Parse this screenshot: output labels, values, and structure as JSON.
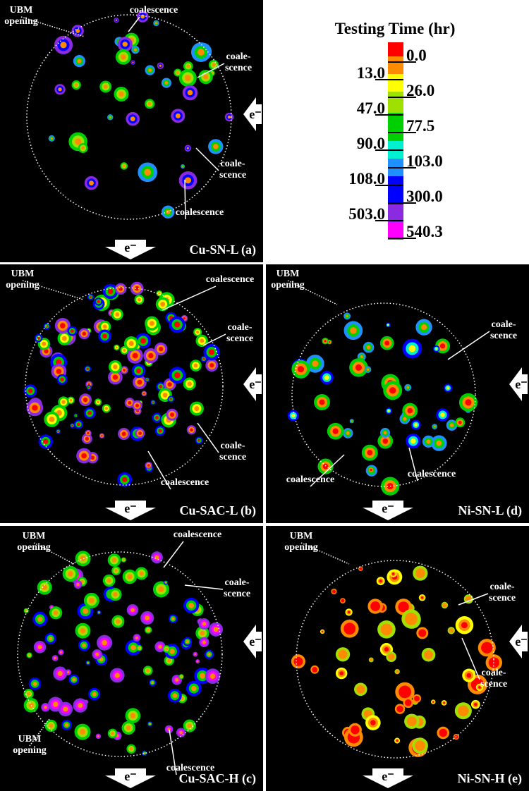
{
  "legend": {
    "title": "Testing Time (hr)",
    "labels": [
      "0.0",
      "13.0",
      "26.0",
      "47.0",
      "77.5",
      "90.0",
      "103.0",
      "108.0",
      "300.0",
      "503.0",
      "540.3"
    ]
  },
  "panels": [
    {
      "label": "Cu-SN-L (a)",
      "electron_labels": [
        "e⁻",
        "e⁻"
      ],
      "annotations": [
        [
          "UBM",
          "opening"
        ],
        [
          "coalescence"
        ],
        [
          "coale-",
          "scence"
        ],
        [
          "coale-",
          "scence"
        ],
        [
          "coalescence"
        ]
      ]
    },
    {
      "label": "Cu-SAC-L (b)",
      "electron_labels": [
        "e⁻",
        "e⁻"
      ],
      "annotations": [
        [
          "UBM",
          "opening"
        ],
        [
          "coalescence"
        ],
        [
          "coale-",
          "scence"
        ],
        [
          "coale-",
          "scence"
        ],
        [
          "coalescence"
        ]
      ]
    },
    {
      "label": "Ni-SN-L (d)",
      "electron_labels": [
        "e⁻",
        "e⁻"
      ],
      "annotations": [
        [
          "UBM",
          "opening"
        ],
        [
          "coale-",
          "scence"
        ],
        [
          "coalescence"
        ],
        [
          "coalescence"
        ]
      ]
    },
    {
      "label": "Cu-SAC-H (c)",
      "electron_labels": [
        "e⁻",
        "e⁻"
      ],
      "annotations": [
        [
          "UBM",
          "opening"
        ],
        [
          "coalescence"
        ],
        [
          "coale-",
          "scence"
        ],
        [
          "UBM",
          "opening"
        ],
        [
          "coalescence"
        ]
      ]
    },
    {
      "label": "Ni-SN-H (e)",
      "electron_labels": [
        "e⁻",
        "e⁻"
      ],
      "annotations": [
        [
          "UBM",
          "opening"
        ],
        [
          "coale-",
          "scence"
        ],
        [
          "coale-",
          "scence"
        ]
      ]
    }
  ]
}
